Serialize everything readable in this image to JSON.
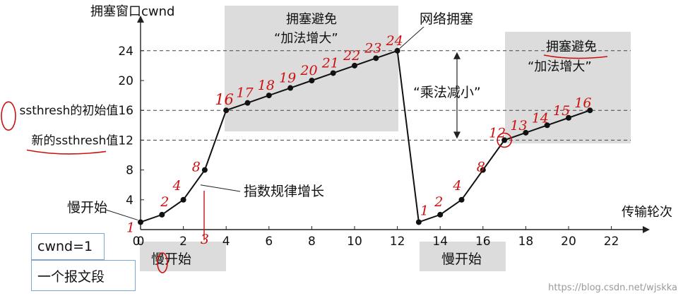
{
  "chart_data": {
    "type": "line",
    "ylabel": "拥塞窗口cwnd",
    "xlabel": "传输轮次",
    "x_ticks": [
      0,
      2,
      4,
      6,
      8,
      10,
      12,
      14,
      16,
      18,
      20,
      22
    ],
    "y_ticks": [
      4,
      8,
      12,
      16,
      20,
      24
    ],
    "xlim": [
      0,
      23
    ],
    "ylim": [
      0,
      26
    ],
    "series": [
      {
        "values": [
          {
            "x": 0,
            "y": 1
          },
          {
            "x": 1,
            "y": 2
          },
          {
            "x": 2,
            "y": 4
          },
          {
            "x": 3,
            "y": 8
          },
          {
            "x": 4,
            "y": 16
          },
          {
            "x": 5,
            "y": 17
          },
          {
            "x": 6,
            "y": 18
          },
          {
            "x": 7,
            "y": 19
          },
          {
            "x": 8,
            "y": 20
          },
          {
            "x": 9,
            "y": 21
          },
          {
            "x": 10,
            "y": 22
          },
          {
            "x": 11,
            "y": 23
          },
          {
            "x": 12,
            "y": 24
          },
          {
            "x": 13,
            "y": 1
          },
          {
            "x": 14,
            "y": 2
          },
          {
            "x": 15,
            "y": 4
          },
          {
            "x": 16,
            "y": 8
          },
          {
            "x": 17,
            "y": 12
          },
          {
            "x": 18,
            "y": 13
          },
          {
            "x": 19,
            "y": 14
          },
          {
            "x": 20,
            "y": 15
          },
          {
            "x": 21,
            "y": 16
          }
        ]
      }
    ],
    "thresholds": [
      {
        "y": 24,
        "label": ""
      },
      {
        "y": 16,
        "label": "ssthresh的初始值16"
      },
      {
        "y": 12,
        "label": "新的ssthresh值12"
      }
    ],
    "regions": [
      {
        "label": "拥塞避免\n“加法增大”"
      },
      {
        "label": "拥塞避免\n“加法增大”"
      },
      {
        "label": "慢开始"
      },
      {
        "label": "慢开始"
      }
    ],
    "annotations": {
      "slow_start": "慢开始",
      "exponential": "指数规律增长",
      "congestion": "网络拥塞",
      "multiplicative_decrease": "“乘法减小”"
    },
    "handwritten": {
      "first_segment": [
        "1",
        "2",
        "4",
        "8"
      ],
      "avoid_1": [
        "16",
        "17",
        "18",
        "19",
        "20",
        "21",
        "22",
        "23",
        "24"
      ],
      "second_segment": [
        "1",
        "2",
        "4",
        "8"
      ],
      "avoid_2": [
        "12",
        "13",
        "14",
        "15",
        "16"
      ],
      "extra": [
        "3"
      ]
    }
  },
  "legend_boxes": {
    "cwnd_label": "cwnd=1",
    "segment_label": "一个报文段"
  },
  "watermark": "https://blog.csdn.net/wjskka"
}
